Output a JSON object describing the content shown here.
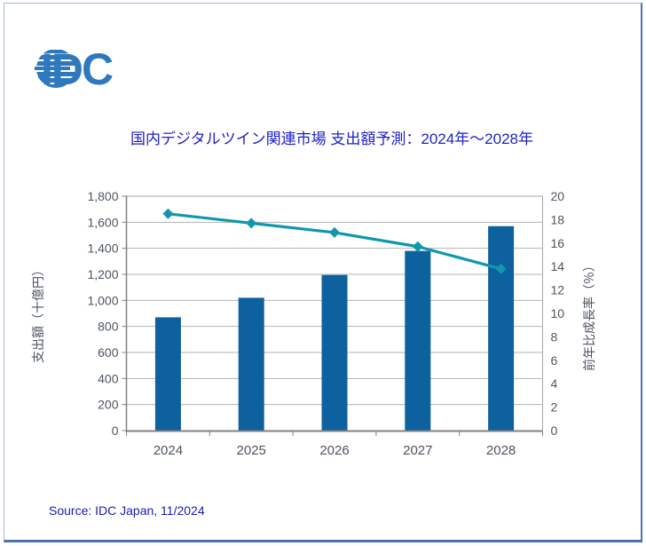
{
  "logo": {
    "text": "IDC",
    "globe_icon": "striped-globe-icon",
    "color": "#2e79be"
  },
  "title": "国内デジタルツイン関連市場 支出額予測：2024年～2028年",
  "source": {
    "text": "Source: IDC Japan, 11/2024"
  },
  "chart_data": {
    "type": "combo (bar + line, dual axis)",
    "categories": [
      "2024",
      "2025",
      "2026",
      "2027",
      "2028"
    ],
    "series": [
      {
        "name": "支出額",
        "chart": "bar",
        "axis": "left",
        "unit": "十億円",
        "values": [
          870,
          1020,
          1195,
          1380,
          1570
        ],
        "color": "#0e619f"
      },
      {
        "name": "前年比成長率",
        "chart": "line",
        "axis": "right",
        "unit": "%",
        "marker": "diamond",
        "values": [
          18.5,
          17.7,
          16.9,
          15.7,
          13.8
        ],
        "color": "#1197ad"
      }
    ],
    "left_axis": {
      "title": "支出額（十億円）",
      "min": 0,
      "max": 1800,
      "step": 200
    },
    "right_axis": {
      "title": "前年比成長率（％）",
      "min": 0,
      "max": 20,
      "step": 2
    },
    "grid": true,
    "legend": "none",
    "colors": {
      "gridline": "#b3b3b3",
      "plot_border": "#a6a6a6",
      "axis_line": "#808080",
      "tick_text": "#4d5560"
    }
  }
}
